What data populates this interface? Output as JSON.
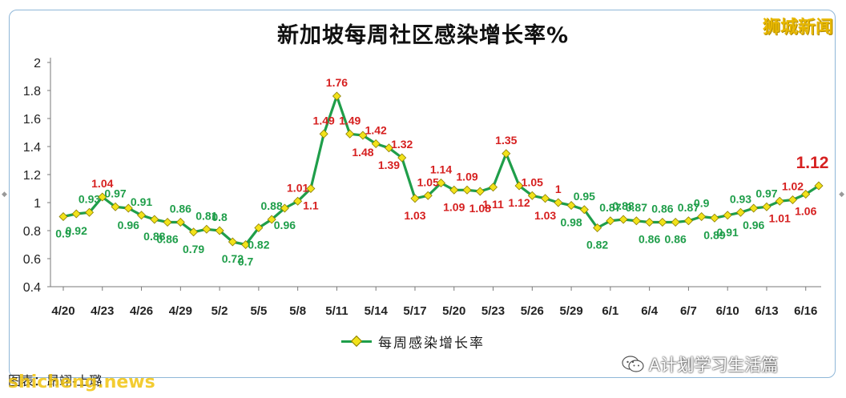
{
  "header": {
    "title": "新加坡每周社区感染增长率%",
    "brand": "狮城新闻"
  },
  "legend": {
    "label": "每周感染增长率"
  },
  "footer": {
    "credit": "图表：昂翊-上璐",
    "watermark": "shicheng.news",
    "wechat": "A计划学习生活篇"
  },
  "colors": {
    "line": "#1f9e4a",
    "marker": "#f2e21a",
    "label_high": "#d62020",
    "label_low": "#1f9e4a"
  },
  "chart_data": {
    "type": "line",
    "title": "新加坡每周社区感染增长率%",
    "ylim": [
      0.4,
      2
    ],
    "yticks": [
      "0.4",
      "0.6",
      "0.8",
      "1",
      "1.2",
      "1.4",
      "1.6",
      "1.8",
      "2"
    ],
    "xtick_labels": [
      "4/20",
      "4/23",
      "4/26",
      "4/29",
      "5/2",
      "5/5",
      "5/8",
      "5/11",
      "5/14",
      "5/17",
      "5/20",
      "5/23",
      "5/26",
      "5/29",
      "6/1",
      "6/4",
      "6/7",
      "6/10",
      "6/13",
      "6/16"
    ],
    "xtick_index": [
      0,
      3,
      6,
      9,
      12,
      15,
      18,
      21,
      24,
      27,
      30,
      33,
      36,
      39,
      42,
      45,
      48,
      51,
      54,
      57
    ],
    "series": [
      {
        "name": "每周感染增长率",
        "values": [
          0.9,
          0.92,
          0.93,
          1.04,
          0.97,
          0.96,
          0.91,
          0.88,
          0.86,
          0.86,
          0.79,
          0.81,
          0.8,
          0.72,
          0.7,
          0.82,
          0.88,
          0.96,
          1.01,
          1.1,
          1.49,
          1.76,
          1.49,
          1.48,
          1.42,
          1.39,
          1.32,
          1.03,
          1.05,
          1.14,
          1.09,
          1.09,
          1.08,
          1.11,
          1.35,
          1.12,
          1.05,
          1.03,
          1.0,
          0.98,
          0.95,
          0.82,
          0.87,
          0.88,
          0.87,
          0.86,
          0.86,
          0.86,
          0.87,
          0.9,
          0.89,
          0.91,
          0.93,
          0.96,
          0.97,
          1.01,
          1.02,
          1.06,
          1.12
        ],
        "labels": [
          "0.9",
          "0.92",
          "0.93",
          "1.04",
          "0.97",
          "0.96",
          "0.91",
          "0.88",
          "0.86",
          "0.86",
          "0.79",
          "0.81",
          "0.8",
          "0.72",
          "0.7",
          "0.82",
          "0.88",
          "0.96",
          "1.01",
          "1.1",
          "1.49",
          "1.76",
          "1.49",
          "1.48",
          "1.42",
          "1.39",
          "1.32",
          "1.03",
          "1.05",
          "1.14",
          "1.09",
          "1.09",
          "1.08",
          "1.11",
          "1.35",
          "1.12",
          "1.05",
          "1.03",
          "1",
          "0.98",
          "0.95",
          "0.82",
          "0.87",
          "0.88",
          "0.87",
          "0.86",
          "0.86",
          "0.86",
          "0.87",
          "0.9",
          "0.89",
          "0.91",
          "0.93",
          "0.96",
          "0.97",
          "1.01",
          "1.02",
          "1.06",
          "1.12"
        ]
      }
    ]
  }
}
